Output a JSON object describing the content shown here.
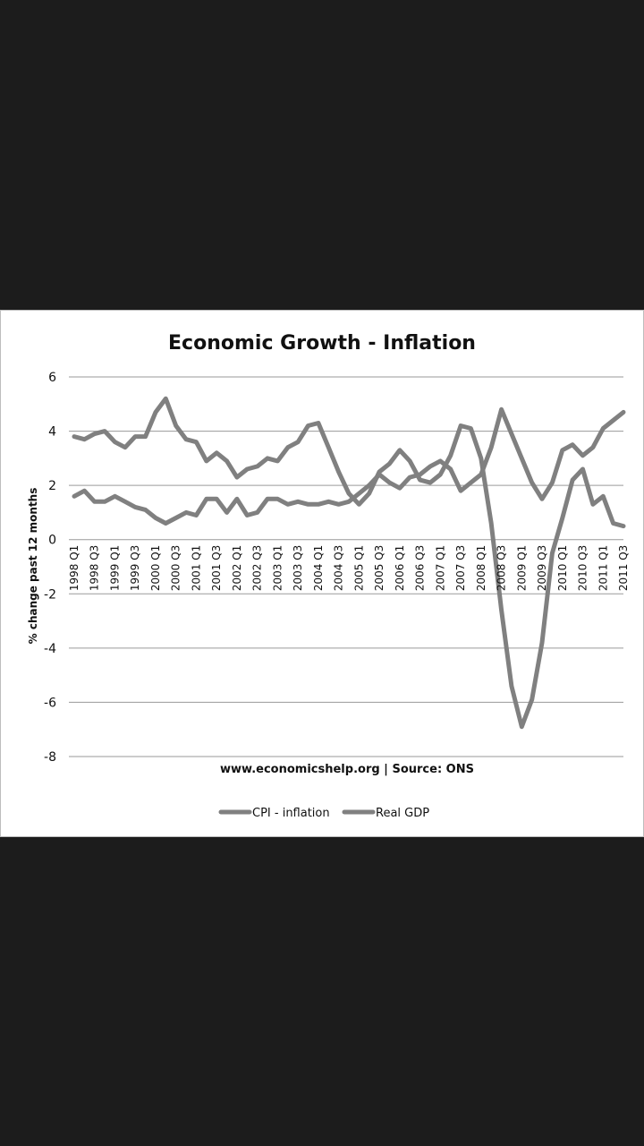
{
  "chart_data": {
    "type": "line",
    "title": "Economic Growth - Inflation",
    "ylabel": "% change past 12 months",
    "source": "www.economicshelp.org | Source: ONS",
    "ylim": [
      -8,
      6
    ],
    "yticks": [
      6,
      4,
      2,
      0,
      -2,
      -4,
      -6,
      -8
    ],
    "grid": true,
    "legend_position": "bottom",
    "line_color": "#808080",
    "x": [
      "1998 Q1",
      "1998 Q2",
      "1998 Q3",
      "1998 Q4",
      "1999 Q1",
      "1999 Q2",
      "1999 Q3",
      "1999 Q4",
      "2000 Q1",
      "2000 Q2",
      "2000 Q3",
      "2000 Q4",
      "2001 Q1",
      "2001 Q2",
      "2001 Q3",
      "2001 Q4",
      "2002 Q1",
      "2002 Q2",
      "2002 Q3",
      "2002 Q4",
      "2003 Q1",
      "2003 Q2",
      "2003 Q3",
      "2003 Q4",
      "2004 Q1",
      "2004 Q2",
      "2004 Q3",
      "2004 Q4",
      "2005 Q1",
      "2005 Q2",
      "2005 Q3",
      "2005 Q4",
      "2006 Q1",
      "2006 Q2",
      "2006 Q3",
      "2006 Q4",
      "2007 Q1",
      "2007 Q2",
      "2007 Q3",
      "2007 Q4",
      "2008 Q1",
      "2008 Q2",
      "2008 Q3",
      "2008 Q4",
      "2009 Q1",
      "2009 Q2",
      "2009 Q3",
      "2009 Q4",
      "2010 Q1",
      "2010 Q2",
      "2010 Q3",
      "2010 Q4",
      "2011 Q1",
      "2011 Q2",
      "2011 Q3"
    ],
    "xtick_labels": [
      "1998 Q1",
      "1998 Q3",
      "1999 Q1",
      "1999 Q3",
      "2000 Q1",
      "2000 Q3",
      "2001 Q1",
      "2001 Q3",
      "2002 Q1",
      "2002 Q3",
      "2003 Q1",
      "2003 Q3",
      "2004 Q1",
      "2004 Q3",
      "2005 Q1",
      "2005 Q3",
      "2006 Q1",
      "2006 Q3",
      "2007 Q1",
      "2007 Q3",
      "2008 Q1",
      "2008 Q3",
      "2009 Q1",
      "2009 Q3",
      "2010 Q1",
      "2010 Q3",
      "2011 Q1",
      "2011 Q3"
    ],
    "series": [
      {
        "name": "CPI - inflation",
        "values": [
          1.6,
          1.8,
          1.4,
          1.4,
          1.6,
          1.4,
          1.2,
          1.1,
          0.8,
          0.6,
          0.8,
          1.0,
          0.9,
          1.5,
          1.5,
          1.0,
          1.5,
          0.9,
          1.0,
          1.5,
          1.5,
          1.3,
          1.4,
          1.3,
          1.3,
          1.4,
          1.3,
          1.4,
          1.7,
          2.0,
          2.4,
          2.1,
          1.9,
          2.3,
          2.4,
          2.7,
          2.9,
          2.6,
          1.8,
          2.1,
          2.4,
          3.4,
          4.8,
          3.9,
          3.0,
          2.1,
          1.5,
          2.1,
          3.3,
          3.5,
          3.1,
          3.4,
          4.1,
          4.4,
          4.7
        ]
      },
      {
        "name": "Real GDP",
        "values": [
          3.8,
          3.7,
          3.9,
          4.0,
          3.6,
          3.4,
          3.8,
          3.8,
          4.7,
          5.2,
          4.2,
          3.7,
          3.6,
          2.9,
          3.2,
          2.9,
          2.3,
          2.6,
          2.7,
          3.0,
          2.9,
          3.4,
          3.6,
          4.2,
          4.3,
          3.4,
          2.5,
          1.7,
          1.3,
          1.7,
          2.5,
          2.8,
          3.3,
          2.9,
          2.2,
          2.1,
          2.4,
          3.1,
          4.2,
          4.1,
          3.0,
          0.6,
          -2.6,
          -5.4,
          -6.9,
          -5.9,
          -3.8,
          -0.5,
          0.8,
          2.2,
          2.6,
          1.3,
          1.6,
          0.6,
          0.5
        ]
      }
    ]
  }
}
